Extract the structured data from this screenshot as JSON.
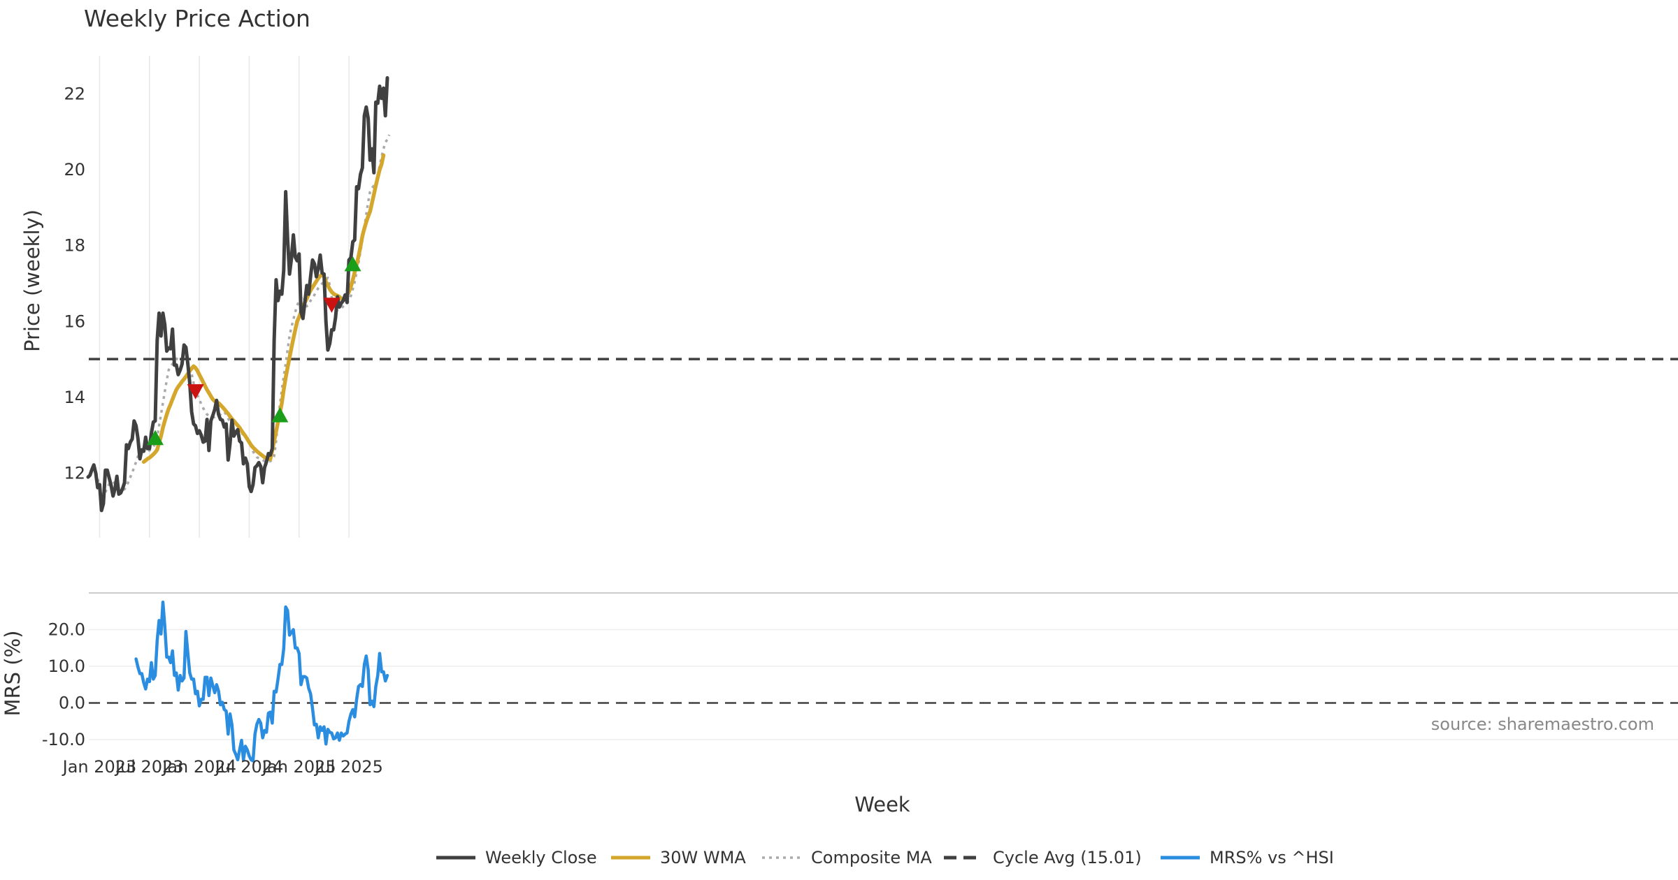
{
  "chart_data": [
    {
      "type": "line",
      "panel": "price",
      "title": "Weekly Price Action",
      "ylabel": "Price (weekly)",
      "ylim": [
        10.3,
        23.0
      ],
      "yticks": [
        "12",
        "14",
        "16",
        "18",
        "20",
        "22"
      ],
      "grid": true,
      "x_start": "2022-11-21",
      "x_step_days": 7,
      "series": [
        {
          "name": "Weekly Close",
          "color": "#404040",
          "style": "solid",
          "values": [
            11.9,
            11.95,
            12.1,
            12.22,
            12.0,
            11.62,
            11.7,
            11.02,
            11.2,
            12.08,
            12.08,
            11.88,
            11.68,
            11.4,
            11.58,
            11.92,
            11.45,
            11.48,
            11.6,
            11.75,
            12.75,
            12.65,
            12.82,
            12.9,
            13.38,
            13.25,
            12.92,
            12.38,
            12.62,
            12.58,
            12.95,
            12.65,
            12.65,
            13.05,
            13.35,
            13.38,
            15.5,
            16.22,
            15.62,
            16.22,
            15.92,
            15.22,
            15.3,
            15.28,
            15.8,
            14.85,
            14.85,
            14.6,
            14.72,
            14.88,
            15.38,
            15.32,
            14.88,
            14.38,
            13.62,
            13.3,
            13.25,
            13.05,
            13.12,
            13.0,
            12.82,
            12.85,
            13.42,
            12.6,
            13.38,
            13.52,
            13.68,
            13.92,
            13.55,
            13.42,
            13.4,
            13.22,
            13.3,
            12.35,
            12.78,
            13.4,
            12.98,
            13.08,
            13.15,
            12.85,
            12.8,
            12.25,
            12.4,
            12.25,
            11.65,
            11.52,
            11.7,
            12.15,
            12.2,
            12.28,
            12.18,
            11.75,
            12.15,
            12.3,
            12.52,
            12.48,
            12.65,
            15.5,
            17.1,
            16.55,
            16.8,
            16.72,
            17.35,
            19.42,
            18.2,
            17.25,
            17.65,
            18.28,
            17.7,
            17.6,
            17.78,
            16.25,
            16.08,
            16.5,
            16.95,
            16.72,
            17.18,
            17.62,
            17.52,
            17.18,
            17.4,
            17.75,
            17.28,
            17.25,
            16.0,
            15.25,
            15.42,
            15.78,
            15.78,
            16.1,
            16.65,
            16.38,
            16.48,
            16.55,
            16.7,
            16.5,
            17.62,
            17.68,
            18.1,
            18.15,
            19.55,
            19.5,
            19.88,
            20.05,
            21.42,
            21.65,
            21.35,
            20.25,
            20.55,
            19.92,
            21.78,
            21.75,
            22.2,
            21.88,
            22.15,
            21.42,
            22.42
          ]
        },
        {
          "name": "30W WMA",
          "color": "#d4a72c",
          "style": "solid",
          "offset": 29,
          "values": [
            12.3,
            12.34,
            12.38,
            12.41,
            12.45,
            12.5,
            12.55,
            12.62,
            12.8,
            12.98,
            13.2,
            13.38,
            13.55,
            13.7,
            13.82,
            13.95,
            14.08,
            14.2,
            14.28,
            14.35,
            14.42,
            14.48,
            14.55,
            14.62,
            14.7,
            14.76,
            14.82,
            14.78,
            14.7,
            14.6,
            14.5,
            14.4,
            14.3,
            14.2,
            14.12,
            14.03,
            13.95,
            13.9,
            13.88,
            13.85,
            13.8,
            13.75,
            13.69,
            13.63,
            13.57,
            13.5,
            13.43,
            13.38,
            13.32,
            13.26,
            13.2,
            13.12,
            13.05,
            12.98,
            12.9,
            12.82,
            12.74,
            12.68,
            12.63,
            12.58,
            12.54,
            12.5,
            12.46,
            12.42,
            12.39,
            12.38,
            12.37,
            12.6,
            12.85,
            13.1,
            13.35,
            13.6,
            13.85,
            14.2,
            14.52,
            14.78,
            15.05,
            15.3,
            15.55,
            15.78,
            16.0,
            16.12,
            16.25,
            16.38,
            16.5,
            16.6,
            16.72,
            16.82,
            16.9,
            16.98,
            17.06,
            17.14,
            17.2,
            17.25,
            17.18,
            17.05,
            16.95,
            16.85,
            16.78,
            16.73,
            16.7,
            16.68,
            16.65,
            16.6,
            16.58,
            16.62,
            16.7,
            16.78,
            16.92,
            17.1,
            17.3,
            17.5,
            17.72,
            17.98,
            18.25,
            18.45,
            18.62,
            18.77,
            18.9,
            19.12,
            19.35,
            19.58,
            19.8,
            20.0,
            20.15,
            20.38
          ]
        },
        {
          "name": "Composite MA",
          "color": "#aaaaaa",
          "style": "dotted",
          "offset": 3,
          "values": [
            12.2,
            12.05,
            11.85,
            11.65,
            11.42,
            11.32,
            11.5,
            11.62,
            11.72,
            11.75,
            11.78,
            11.72,
            11.65,
            11.6,
            11.58,
            11.55,
            11.58,
            11.65,
            11.78,
            11.9,
            12.02,
            12.15,
            12.3,
            12.45,
            12.6,
            12.68,
            12.62,
            12.55,
            12.58,
            12.6,
            12.65,
            12.7,
            12.78,
            12.95,
            13.25,
            13.55,
            13.85,
            14.15,
            14.45,
            14.72,
            14.82,
            14.88,
            14.95,
            15.02,
            15.0,
            14.95,
            14.88,
            14.85,
            14.88,
            14.9,
            14.85,
            14.62,
            14.38,
            14.18,
            14.05,
            13.95,
            13.82,
            13.72,
            13.62,
            13.55,
            13.52,
            13.5,
            13.48,
            13.48,
            13.5,
            13.52,
            13.55,
            13.6,
            13.62,
            13.55,
            13.45,
            13.35,
            13.28,
            13.22,
            13.18,
            13.15,
            13.1,
            13.05,
            13.02,
            12.95,
            12.88,
            12.8,
            12.7,
            12.58,
            12.48,
            12.42,
            12.4,
            12.38,
            12.35,
            12.32,
            12.3,
            12.3,
            12.32,
            12.35,
            12.45,
            12.85,
            13.35,
            13.82,
            14.2,
            14.55,
            14.88,
            15.25,
            15.62,
            15.85,
            16.05,
            16.25,
            16.42,
            16.55,
            16.62,
            16.68,
            16.55,
            16.4,
            16.45,
            16.55,
            16.62,
            16.7,
            16.8,
            16.88,
            16.95,
            17.0,
            17.05,
            17.1,
            17.15,
            16.95,
            16.65,
            16.42,
            16.32,
            16.3,
            16.32,
            16.35,
            16.4,
            16.45,
            16.5,
            16.55,
            16.68,
            16.85,
            17.05,
            17.3,
            17.55,
            17.85,
            18.15,
            18.45,
            18.82,
            19.15,
            19.42,
            19.52,
            19.58,
            19.6,
            19.85,
            20.1,
            20.35,
            20.55,
            20.72,
            20.8,
            20.92
          ]
        },
        {
          "name": "Cycle Avg (15.01)",
          "color": "#404040",
          "style": "dashed",
          "value": 15.01
        }
      ],
      "markers": [
        {
          "type": "buy",
          "color": "#1a9e1a",
          "week_index": 35,
          "value": 12.92
        },
        {
          "type": "sell",
          "color": "#cc1111",
          "week_index": 56,
          "value": 14.17
        },
        {
          "type": "buy",
          "color": "#1a9e1a",
          "week_index": 100,
          "value": 13.52
        },
        {
          "type": "sell",
          "color": "#cc1111",
          "week_index": 127,
          "value": 16.45
        },
        {
          "type": "buy",
          "color": "#1a9e1a",
          "week_index": 138,
          "value": 17.5
        }
      ]
    },
    {
      "type": "line",
      "panel": "mrs",
      "ylabel": "MRS (%)",
      "xlabel": "Week",
      "ylim": [
        -14,
        30
      ],
      "yticks": [
        "20.0",
        "10.0",
        "0.0",
        "-10.0"
      ],
      "xticks": [
        "Jan 2023",
        "Jul 2023",
        "Jan 2024",
        "Jul 2024",
        "Jan 2025",
        "Jul 2025"
      ],
      "series": [
        {
          "name": "MRS% vs ^HSI",
          "color": "#2b8de0",
          "style": "solid",
          "offset": 25,
          "values": [
            12.0,
            9.8,
            8.0,
            8.0,
            5.5,
            3.8,
            6.5,
            5.8,
            11.0,
            6.5,
            7.5,
            17.0,
            22.5,
            18.8,
            27.5,
            21.0,
            12.5,
            12.5,
            11.0,
            14.2,
            7.5,
            8.2,
            3.5,
            7.5,
            6.0,
            6.8,
            19.5,
            13.5,
            8.2,
            6.5,
            6.5,
            2.5,
            3.2,
            -0.8,
            1.0,
            1.0,
            7.0,
            7.0,
            2.0,
            6.8,
            4.8,
            2.8,
            5.0,
            3.2,
            -0.5,
            0.2,
            -1.8,
            -2.2,
            -8.5,
            -3.0,
            -6.0,
            -12.8,
            -14.0,
            -15.5,
            -12.8,
            -10.2,
            -15.5,
            -11.8,
            -12.8,
            -14.5,
            -15.5,
            -15.8,
            -8.5,
            -5.8,
            -4.5,
            -5.5,
            -9.5,
            -7.5,
            -8.0,
            -2.8,
            -2.5,
            -5.5,
            3.2,
            3.0,
            6.5,
            10.5,
            10.5,
            14.8,
            26.2,
            25.2,
            18.5,
            19.2,
            20.0,
            15.0,
            15.0,
            13.5,
            5.0,
            7.2,
            7.2,
            6.8,
            4.0,
            2.5,
            -1.5,
            -6.0,
            -5.8,
            -9.5,
            -6.5,
            -7.5,
            -6.5,
            -11.2,
            -7.2,
            -8.0,
            -8.2,
            -9.8,
            -9.5,
            -8.2,
            -10.2,
            -8.2,
            -9.0,
            -8.5,
            -8.2,
            -5.0,
            -3.0,
            -1.8,
            -3.8,
            1.0,
            4.5,
            5.0,
            4.5,
            10.5,
            12.8,
            9.0,
            -0.5,
            0.5,
            -1.0,
            4.5,
            7.5,
            13.5,
            8.5,
            8.5,
            6.0,
            7.5
          ]
        },
        {
          "name": "zero-line",
          "color": "#404040",
          "style": "dashed",
          "value": 0
        }
      ]
    }
  ],
  "legend": [
    {
      "label": "Weekly Close",
      "color": "#404040",
      "style": "solid"
    },
    {
      "label": "30W WMA",
      "color": "#d4a72c",
      "style": "solid"
    },
    {
      "label": "Composite MA",
      "color": "#aaaaaa",
      "style": "dotted"
    },
    {
      "label": "Cycle Avg (15.01)",
      "color": "#404040",
      "style": "dashed"
    },
    {
      "label": "MRS% vs ^HSI",
      "color": "#2b8de0",
      "style": "solid"
    }
  ],
  "source": "source: sharemaestro.com"
}
